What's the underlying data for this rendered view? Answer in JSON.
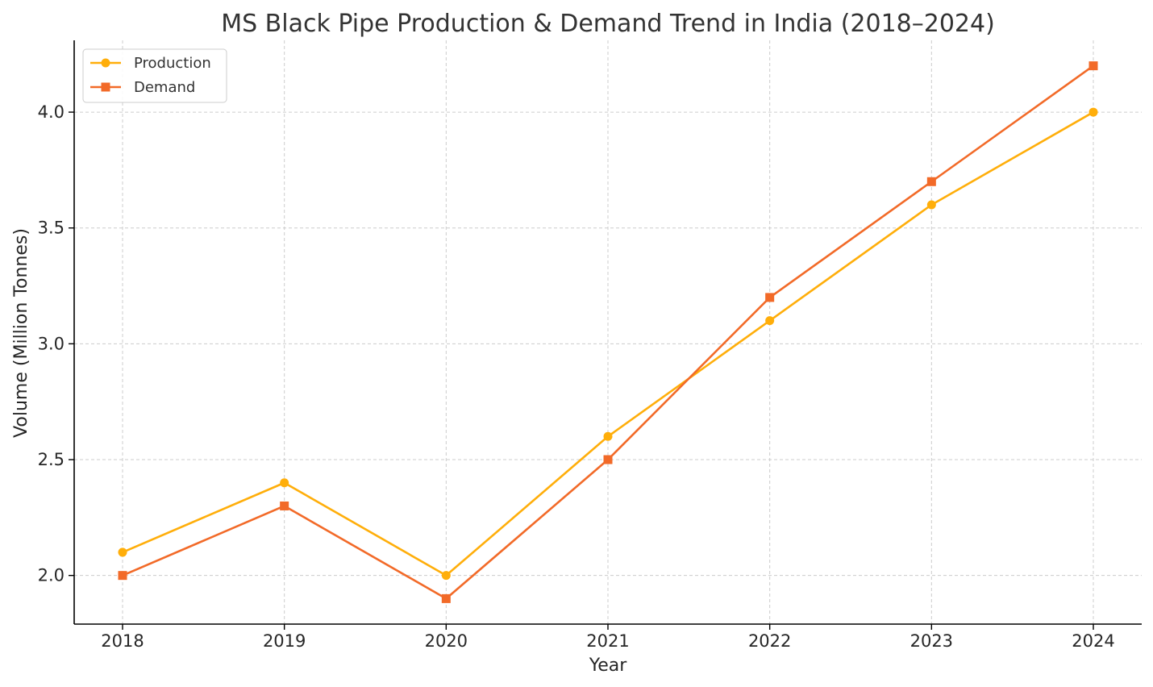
{
  "chart_data": {
    "type": "line",
    "title": "MS Black Pipe Production & Demand Trend in India (2018–2024)",
    "xlabel": "Year",
    "ylabel": "Volume (Million Tonnes)",
    "categories": [
      "2018",
      "2019",
      "2020",
      "2021",
      "2022",
      "2023",
      "2024"
    ],
    "ylim": [
      1.79,
      4.31
    ],
    "yticks": [
      "2.0",
      "2.5",
      "3.0",
      "3.5",
      "4.0"
    ],
    "grid": true,
    "legend_position": "top-left",
    "series": [
      {
        "name": "Production",
        "values": [
          2.1,
          2.4,
          2.0,
          2.6,
          3.1,
          3.6,
          4.0
        ],
        "color": "#FFAE0A",
        "marker": "circle"
      },
      {
        "name": "Demand",
        "values": [
          2.0,
          2.3,
          1.9,
          2.5,
          3.2,
          3.7,
          4.2
        ],
        "color": "#F26A28",
        "marker": "square"
      }
    ]
  }
}
